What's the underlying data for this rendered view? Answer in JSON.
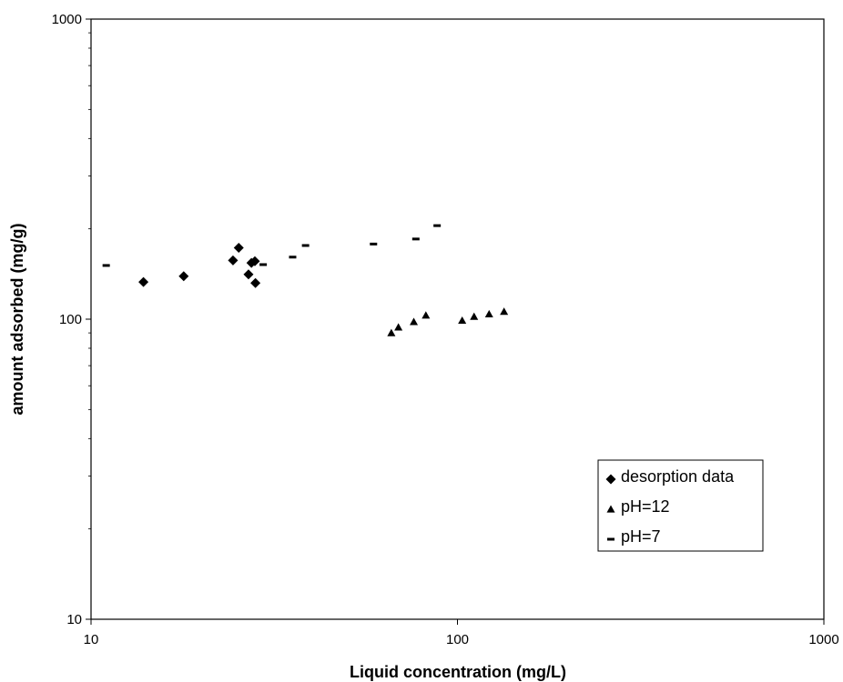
{
  "chart_data": {
    "type": "scatter",
    "title": "",
    "xlabel": "Liquid concentration (mg/L)",
    "ylabel": "amount adsorbed (mg/g)",
    "x_scale": "log",
    "y_scale": "log",
    "xlim": [
      10,
      1000
    ],
    "ylim": [
      10,
      1000
    ],
    "x_ticks": [
      "10",
      "100",
      "1000"
    ],
    "y_ticks": [
      "10",
      "100",
      "1000"
    ],
    "grid": false,
    "legend_position": "bottom-right",
    "series": [
      {
        "name": "desorption data",
        "marker": "diamond",
        "points": [
          [
            13.9,
            133
          ],
          [
            17.9,
            139
          ],
          [
            24.4,
            157
          ],
          [
            25.3,
            173
          ],
          [
            26.9,
            141
          ],
          [
            27.4,
            154
          ],
          [
            28.0,
            156
          ],
          [
            28.1,
            132
          ]
        ]
      },
      {
        "name": "pH=12",
        "marker": "triangle",
        "points": [
          [
            66,
            90
          ],
          [
            69,
            94
          ],
          [
            76,
            98
          ],
          [
            82,
            103
          ],
          [
            103,
            99
          ],
          [
            111,
            102
          ],
          [
            122,
            104
          ],
          [
            134,
            106
          ]
        ]
      },
      {
        "name": "pH=7",
        "marker": "dash",
        "points": [
          [
            11.0,
            151
          ],
          [
            29.5,
            152
          ],
          [
            35.5,
            161
          ],
          [
            38.5,
            176
          ],
          [
            59,
            178
          ],
          [
            77,
            185
          ],
          [
            88,
            205
          ]
        ]
      }
    ]
  }
}
